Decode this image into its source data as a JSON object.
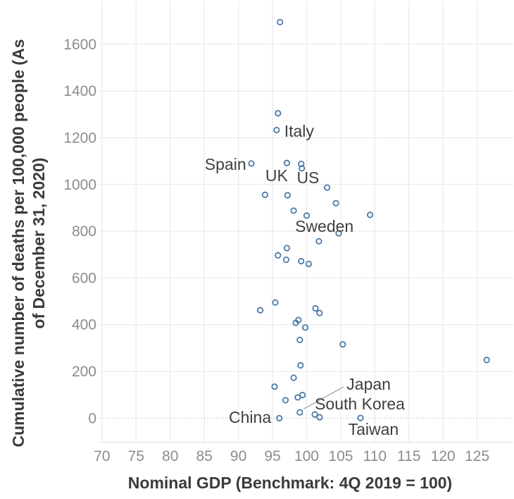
{
  "chart_data": {
    "type": "scatter",
    "title": "",
    "xlabel": "Nominal GDP (Benchmark: 4Q 2019 = 100)",
    "ylabel_line1": "Cumulative number of deaths per 100,000 people (As",
    "ylabel_line2": "of December 31, 2020)",
    "x_ticks": [
      70,
      75,
      80,
      85,
      90,
      95,
      100,
      105,
      110,
      115,
      120,
      125
    ],
    "y_ticks": [
      0,
      200,
      400,
      600,
      800,
      1000,
      1200,
      1400,
      1600
    ],
    "xlim": [
      69.6,
      130.3
    ],
    "ylim": [
      -101.6,
      1783.6
    ],
    "grid": {
      "major": true,
      "minor": false,
      "zero_line_style": "dotted",
      "legend": "none"
    },
    "marker": {
      "shape": "open-circle",
      "radius_px": 3.7,
      "stroke_px": 1.8
    },
    "points": [
      [
        96.1,
        1695
      ],
      [
        95.8,
        1305
      ],
      [
        95.6,
        1233
      ],
      [
        91.9,
        1090
      ],
      [
        97.1,
        1092
      ],
      [
        99.2,
        1088
      ],
      [
        99.3,
        1069
      ],
      [
        103.0,
        987
      ],
      [
        93.9,
        956
      ],
      [
        97.2,
        954
      ],
      [
        104.3,
        920
      ],
      [
        98.1,
        888
      ],
      [
        100.0,
        867
      ],
      [
        109.3,
        870
      ],
      [
        104.7,
        791
      ],
      [
        101.8,
        757
      ],
      [
        97.1,
        728
      ],
      [
        95.8,
        697
      ],
      [
        97.0,
        678
      ],
      [
        99.2,
        672
      ],
      [
        100.3,
        660
      ],
      [
        93.2,
        462
      ],
      [
        95.4,
        495
      ],
      [
        101.3,
        470
      ],
      [
        101.9,
        450
      ],
      [
        98.4,
        408
      ],
      [
        98.8,
        420
      ],
      [
        99.8,
        388
      ],
      [
        99.0,
        335
      ],
      [
        105.3,
        316
      ],
      [
        126.4,
        249
      ],
      [
        99.1,
        226
      ],
      [
        98.1,
        173
      ],
      [
        95.3,
        135
      ],
      [
        96.9,
        77
      ],
      [
        98.7,
        89
      ],
      [
        99.4,
        99
      ],
      [
        99.0,
        25
      ],
      [
        96.0,
        0
      ],
      [
        101.2,
        16
      ],
      [
        101.9,
        4
      ],
      [
        107.9,
        1
      ]
    ],
    "labels": [
      {
        "text": "Italy",
        "x": 98.9,
        "y": 1228
      },
      {
        "text": "Spain",
        "x": 88.1,
        "y": 1087
      },
      {
        "text": "UK",
        "x": 95.6,
        "y": 1038
      },
      {
        "text": "US",
        "x": 100.2,
        "y": 1029
      },
      {
        "text": "Sweden",
        "x": 102.6,
        "y": 821
      },
      {
        "text": "Japan",
        "x": 109.1,
        "y": 146,
        "leader": {
          "x1": 99.6,
          "y1": 40,
          "x2": 105.4,
          "y2": 134
        }
      },
      {
        "text": "South Korea",
        "x": 107.8,
        "y": 61
      },
      {
        "text": "China",
        "x": 91.7,
        "y": 4
      },
      {
        "text": "Taiwan",
        "x": 109.8,
        "y": -47
      }
    ]
  },
  "colors": {
    "background": "#ffffff",
    "marker_stroke": "#4a7aab",
    "gridline": "#ebebeb",
    "zero_line": "#c9c9c9",
    "axis_line": "#e4e4e4",
    "tick_label": "#8c8c8c",
    "country_label": "#3f3f3f",
    "axis_title": "#3a3a3a",
    "leader_line": "#8a8a8a"
  }
}
